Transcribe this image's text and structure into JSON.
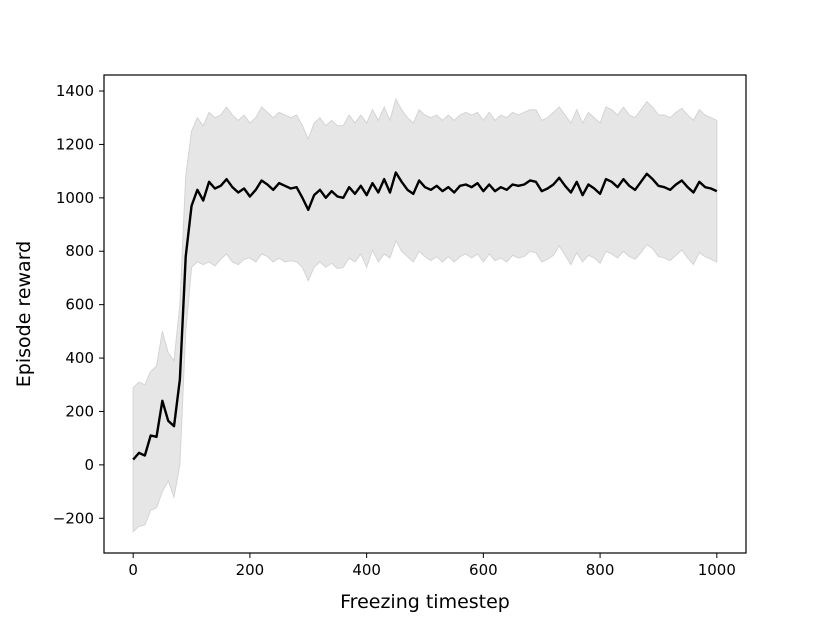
{
  "chart_data": {
    "type": "line",
    "xlabel": "Freezing timestep",
    "ylabel": "Episode reward",
    "xlim": [
      -50,
      1050
    ],
    "ylim": [
      -330,
      1460
    ],
    "xticks": [
      0,
      200,
      400,
      600,
      800,
      1000
    ],
    "yticks": [
      -200,
      0,
      200,
      400,
      600,
      800,
      1000,
      1200,
      1400
    ],
    "xtick_labels": [
      "0",
      "200",
      "400",
      "600",
      "800",
      "1000"
    ],
    "ytick_labels": [
      "−200",
      "0",
      "200",
      "400",
      "600",
      "800",
      "1000",
      "1200",
      "1400"
    ],
    "grid": false,
    "colors": {
      "line": "#000000",
      "band": "#e6e6e6",
      "band_edge": "#d4d4d4"
    },
    "series": [
      {
        "x": [
          0,
          10,
          20,
          30,
          40,
          50,
          60,
          70,
          80,
          90,
          100,
          110,
          120,
          130,
          140,
          150,
          160,
          170,
          180,
          190,
          200,
          210,
          220,
          230,
          240,
          250,
          260,
          270,
          280,
          290,
          300,
          310,
          320,
          330,
          340,
          350,
          360,
          370,
          380,
          390,
          400,
          410,
          420,
          430,
          440,
          450,
          460,
          470,
          480,
          490,
          500,
          510,
          520,
          530,
          540,
          550,
          560,
          570,
          580,
          590,
          600,
          610,
          620,
          630,
          640,
          650,
          660,
          670,
          680,
          690,
          700,
          710,
          720,
          730,
          740,
          750,
          760,
          770,
          780,
          790,
          800,
          810,
          820,
          830,
          840,
          850,
          860,
          870,
          880,
          890,
          900,
          910,
          920,
          930,
          940,
          950,
          960,
          970,
          980,
          990,
          1000
        ],
        "y": [
          20,
          45,
          35,
          110,
          105,
          240,
          165,
          145,
          320,
          780,
          970,
          1030,
          990,
          1060,
          1035,
          1045,
          1070,
          1040,
          1020,
          1035,
          1005,
          1030,
          1065,
          1050,
          1030,
          1055,
          1045,
          1035,
          1040,
          1000,
          955,
          1010,
          1030,
          1000,
          1025,
          1005,
          1000,
          1040,
          1015,
          1045,
          1010,
          1055,
          1020,
          1070,
          1020,
          1095,
          1060,
          1030,
          1015,
          1065,
          1040,
          1030,
          1045,
          1025,
          1040,
          1020,
          1045,
          1050,
          1040,
          1055,
          1025,
          1050,
          1025,
          1040,
          1030,
          1050,
          1045,
          1050,
          1065,
          1060,
          1025,
          1035,
          1050,
          1075,
          1045,
          1020,
          1060,
          1010,
          1050,
          1035,
          1015,
          1070,
          1060,
          1040,
          1070,
          1045,
          1030,
          1060,
          1090,
          1070,
          1045,
          1040,
          1030,
          1050,
          1065,
          1040,
          1020,
          1060,
          1040,
          1035,
          1025
        ],
        "lower": [
          -250,
          -230,
          -225,
          -170,
          -160,
          -100,
          -60,
          -120,
          0,
          500,
          740,
          760,
          750,
          760,
          745,
          770,
          790,
          760,
          750,
          770,
          775,
          760,
          790,
          780,
          760,
          775,
          760,
          765,
          760,
          740,
          690,
          740,
          760,
          740,
          755,
          735,
          740,
          775,
          760,
          790,
          740,
          805,
          760,
          790,
          775,
          840,
          800,
          780,
          760,
          800,
          780,
          765,
          780,
          760,
          780,
          760,
          780,
          790,
          775,
          790,
          760,
          790,
          765,
          775,
          760,
          785,
          775,
          780,
          800,
          795,
          760,
          770,
          785,
          820,
          785,
          750,
          795,
          760,
          785,
          775,
          755,
          800,
          790,
          775,
          800,
          780,
          770,
          795,
          825,
          810,
          780,
          775,
          765,
          785,
          805,
          775,
          750,
          795,
          780,
          770,
          760
        ],
        "upper": [
          290,
          310,
          300,
          350,
          370,
          500,
          420,
          390,
          600,
          1080,
          1250,
          1300,
          1270,
          1320,
          1300,
          1310,
          1340,
          1310,
          1290,
          1310,
          1280,
          1300,
          1340,
          1320,
          1300,
          1320,
          1310,
          1300,
          1310,
          1270,
          1220,
          1280,
          1300,
          1270,
          1290,
          1270,
          1270,
          1310,
          1280,
          1310,
          1280,
          1330,
          1290,
          1340,
          1290,
          1370,
          1330,
          1300,
          1280,
          1330,
          1310,
          1300,
          1310,
          1290,
          1310,
          1290,
          1310,
          1320,
          1310,
          1320,
          1290,
          1320,
          1290,
          1310,
          1300,
          1320,
          1310,
          1320,
          1330,
          1330,
          1290,
          1300,
          1320,
          1340,
          1310,
          1280,
          1330,
          1280,
          1320,
          1300,
          1280,
          1340,
          1330,
          1310,
          1340,
          1310,
          1300,
          1330,
          1360,
          1340,
          1310,
          1310,
          1300,
          1320,
          1335,
          1310,
          1290,
          1330,
          1310,
          1300,
          1290
        ]
      }
    ]
  }
}
